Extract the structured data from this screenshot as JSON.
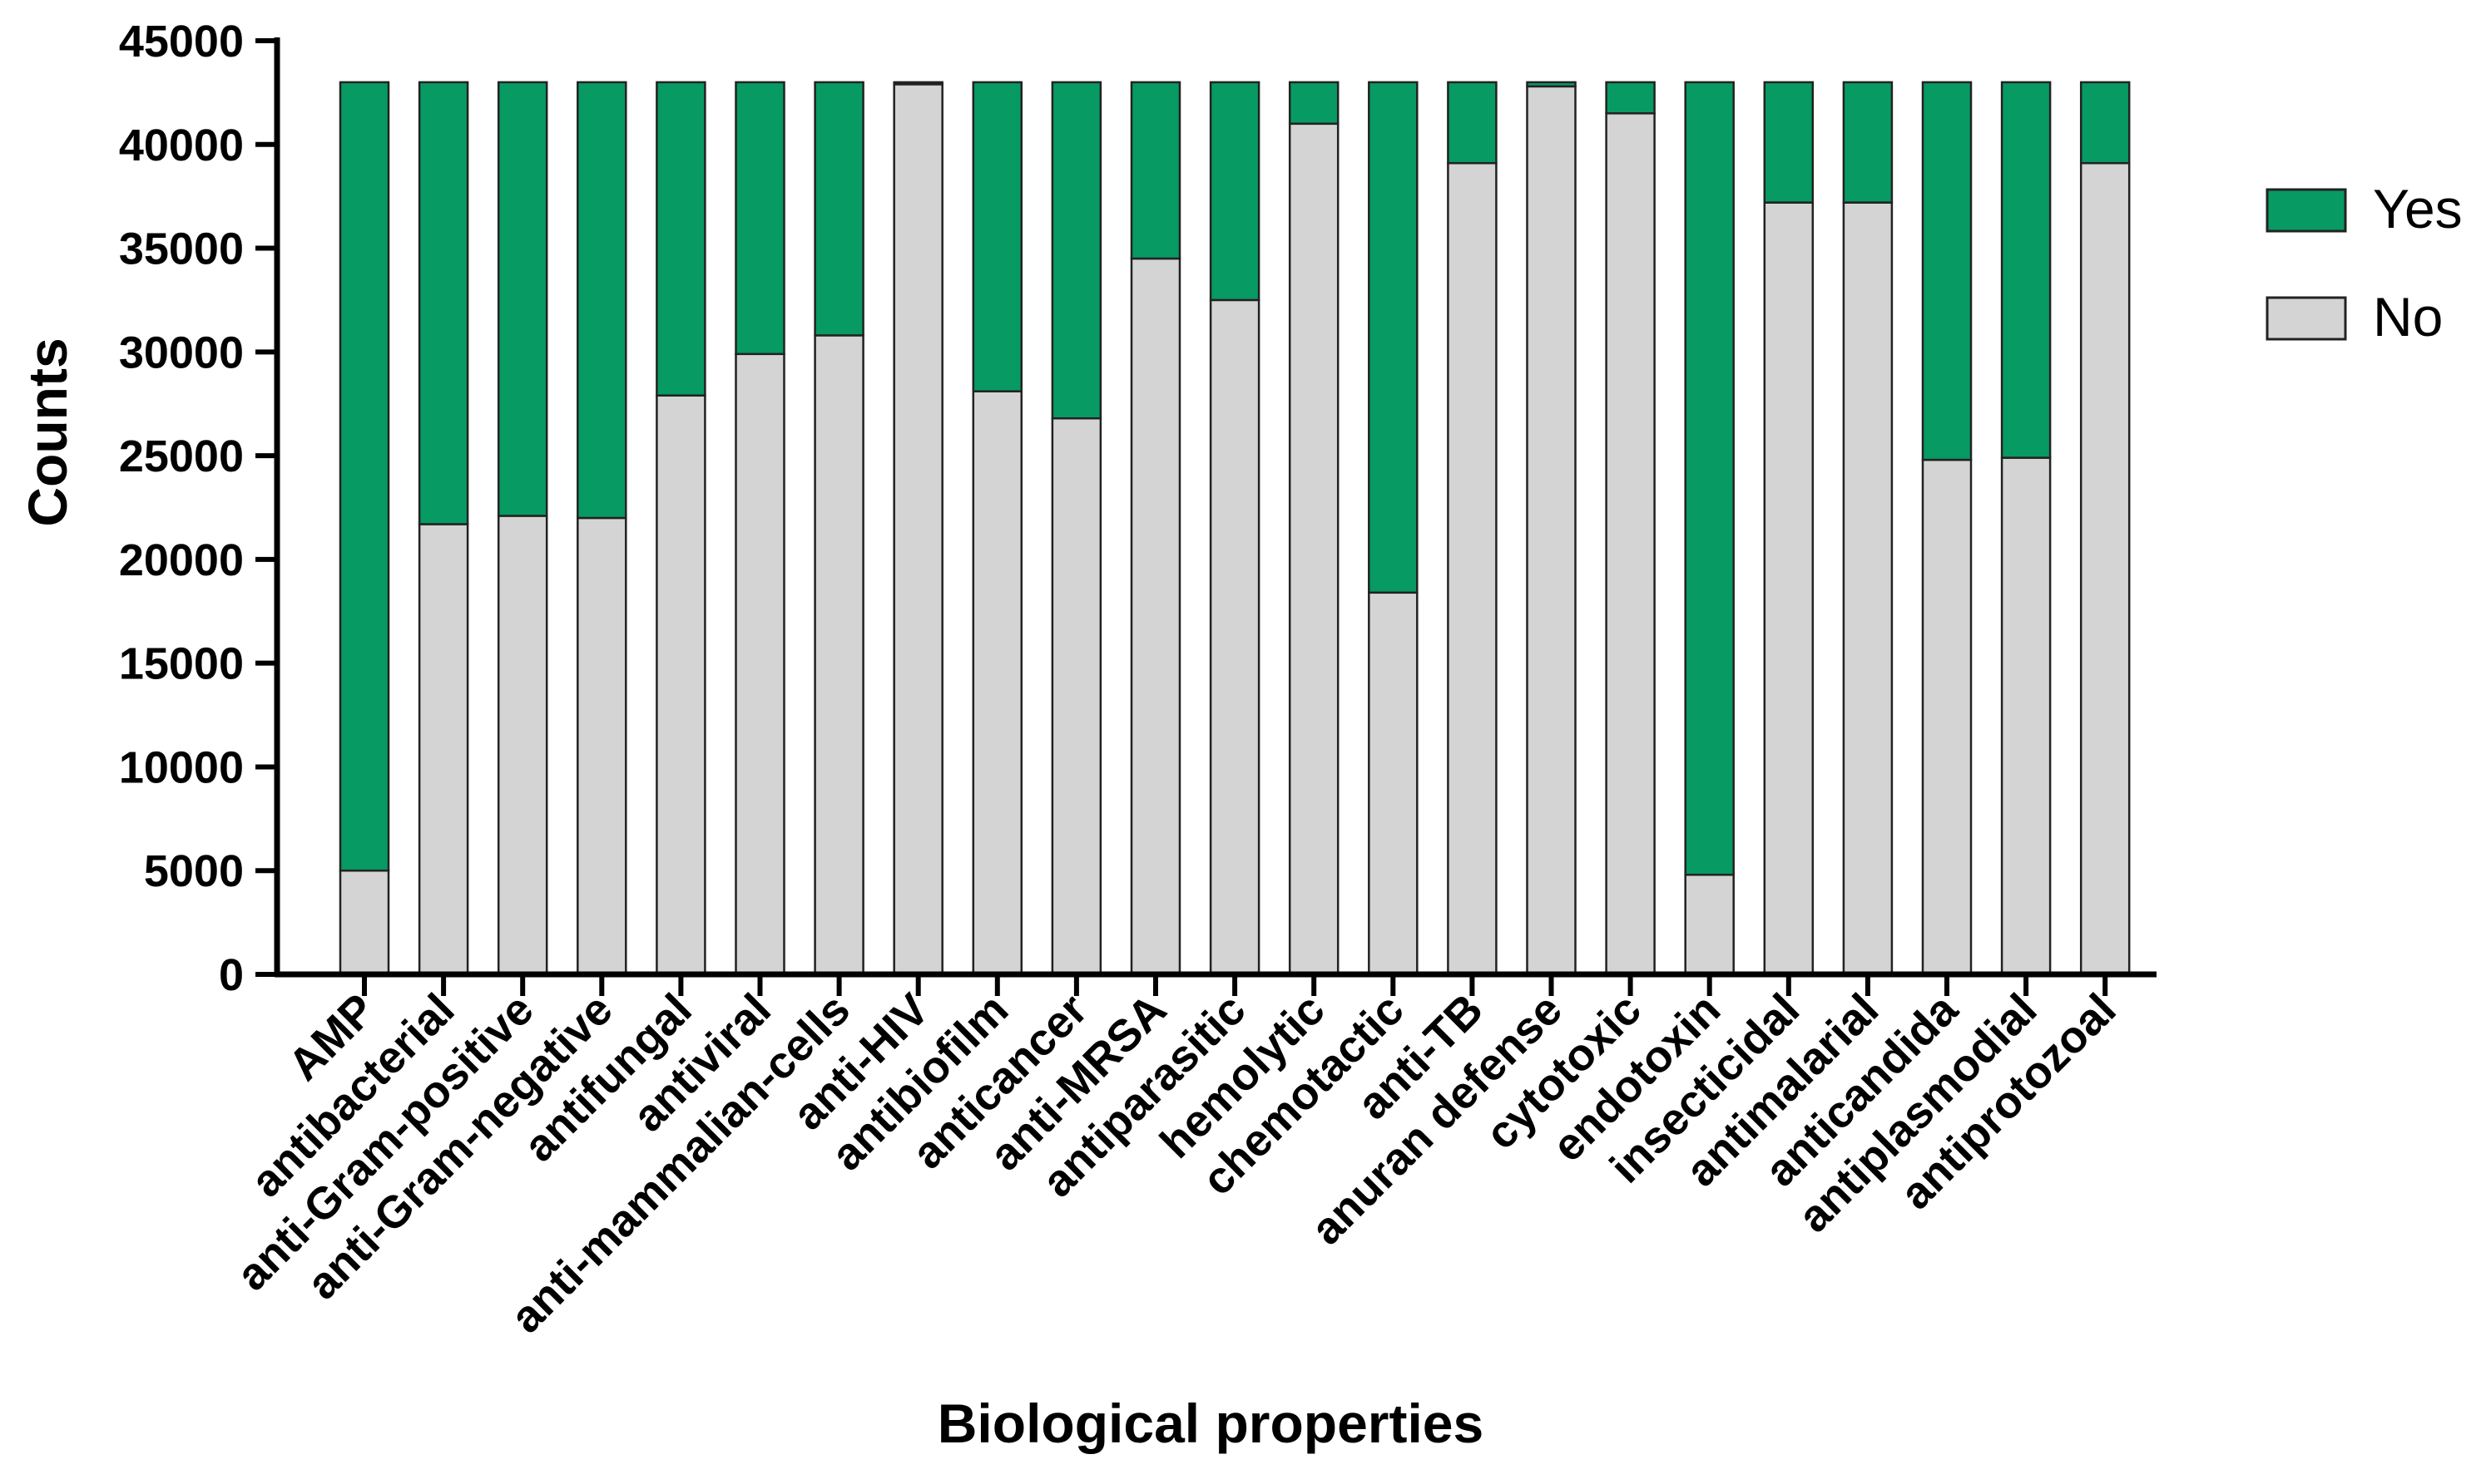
{
  "chart_data": {
    "type": "bar",
    "stacked": true,
    "title": "",
    "xlabel": "Biological properties",
    "ylabel": "Counts",
    "ylim": [
      0,
      45000
    ],
    "yticks": [
      0,
      5000,
      10000,
      15000,
      20000,
      25000,
      30000,
      35000,
      40000,
      45000
    ],
    "grid": false,
    "legend": "right",
    "categories": [
      "AMP",
      "antibacterial",
      "anti-Gram-positive",
      "anti-Gram-negative",
      "antifungal",
      "antiviral",
      "anti-mammalian-cells",
      "anti-HIV",
      "antibiofilm",
      "anticancer",
      "anti-MRSA",
      "antiparasitic",
      "hemolytic",
      "chemotactic",
      "anti-TB",
      "anuran defense",
      "cytotoxic",
      "endotoxin",
      "insecticidal",
      "antimalarial",
      "anticandida",
      "antiplasmodial",
      "antiprotozoal"
    ],
    "series": [
      {
        "name": "No",
        "color": "#d4d4d4",
        "values": [
          5000,
          21700,
          22100,
          22000,
          27900,
          29900,
          30800,
          42900,
          28100,
          26800,
          34500,
          32500,
          41000,
          18400,
          39100,
          42800,
          41500,
          4800,
          37200,
          37200,
          24800,
          24900,
          39100
        ]
      },
      {
        "name": "Yes",
        "color": "#079a63",
        "values": [
          38000,
          21300,
          20900,
          21000,
          15100,
          13100,
          12200,
          100,
          14900,
          16200,
          8500,
          10500,
          2000,
          24600,
          3900,
          200,
          1500,
          38200,
          5800,
          5800,
          18200,
          18100,
          3900
        ]
      }
    ],
    "legend_entries": [
      "Yes",
      "No"
    ]
  }
}
